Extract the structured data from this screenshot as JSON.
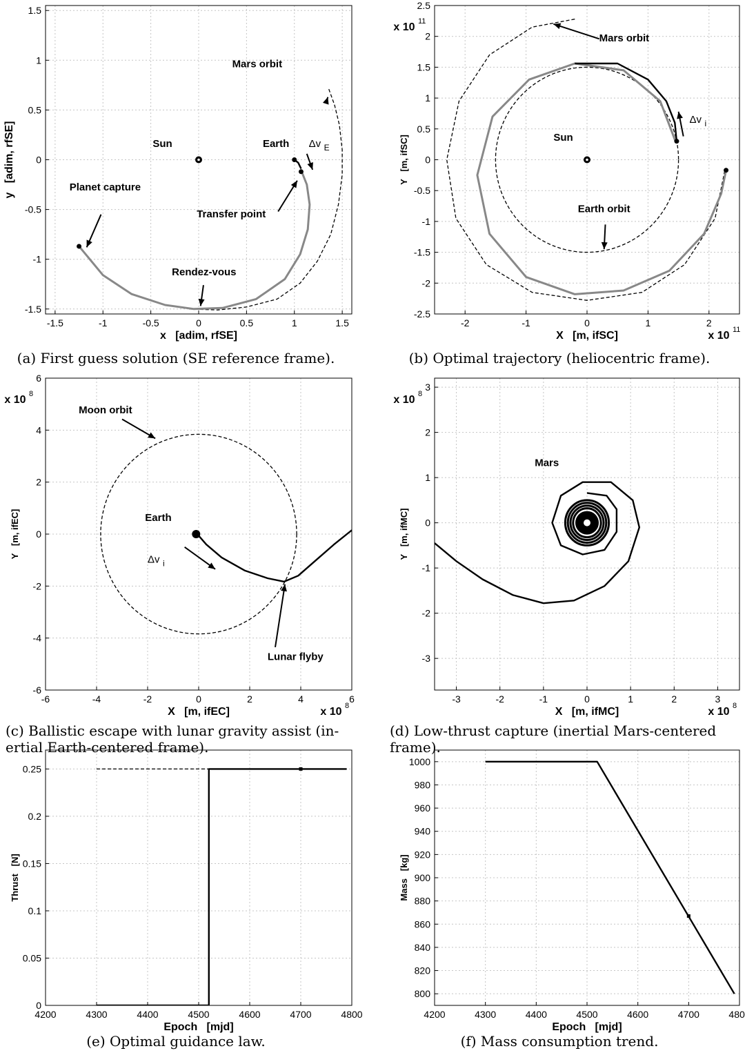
{
  "chart_data": [
    {
      "id": "a",
      "type": "line",
      "caption": "(a) First guess solution (SE reference frame).",
      "xlabel": "x   [adim, rfSE]",
      "ylabel": "y   [adim, rfSE]",
      "xlim": [
        -1.6,
        1.6
      ],
      "ylim": [
        -1.55,
        1.55
      ],
      "xticks": [
        "-1.5",
        "-1",
        "-0.5",
        "0",
        "0.5",
        "1",
        "1.5"
      ],
      "xtick_vals": [
        -1.5,
        -1,
        -0.5,
        0,
        0.5,
        1,
        1.5
      ],
      "yticks": [
        "1.5",
        "1",
        "0.5",
        "0",
        "-0.5",
        "-1",
        "-1.5"
      ],
      "ytick_vals": [
        1.5,
        1,
        0.5,
        0,
        -0.5,
        -1,
        -1.5
      ],
      "grid": true,
      "series": [
        {
          "style": "dashed",
          "color": "#000",
          "points": [
            [
              1.36,
              0.71
            ],
            [
              1.42,
              0.55
            ],
            [
              1.47,
              0.35
            ],
            [
              1.5,
              0.1
            ],
            [
              1.5,
              -0.15
            ],
            [
              1.46,
              -0.45
            ],
            [
              1.38,
              -0.75
            ],
            [
              1.24,
              -1.02
            ],
            [
              1.06,
              -1.24
            ],
            [
              0.82,
              -1.4
            ],
            [
              0.5,
              -1.48
            ],
            [
              0.2,
              -1.51
            ],
            [
              -0.1,
              -1.5
            ]
          ]
        },
        {
          "style": "solid",
          "color": "#888888",
          "points": [
            [
              1.08,
              -0.13
            ],
            [
              1.13,
              -0.25
            ],
            [
              1.16,
              -0.45
            ],
            [
              1.14,
              -0.7
            ],
            [
              1.06,
              -0.95
            ],
            [
              0.9,
              -1.2
            ],
            [
              0.6,
              -1.4
            ],
            [
              0.25,
              -1.49
            ],
            [
              -0.05,
              -1.5
            ],
            [
              -0.35,
              -1.46
            ],
            [
              -0.7,
              -1.35
            ],
            [
              -1.0,
              -1.16
            ],
            [
              -1.25,
              -0.87
            ]
          ]
        },
        {
          "style": "solid",
          "color": "#000",
          "points": [
            [
              1.0,
              0.0
            ],
            [
              1.04,
              -0.03
            ],
            [
              1.07,
              -0.09
            ]
          ]
        }
      ],
      "markers": [
        [
          0,
          0
        ],
        [
          1.0,
          0.0
        ],
        [
          1.07,
          -0.12
        ],
        [
          -1.25,
          -0.87
        ]
      ],
      "labels": [
        {
          "text": "Sun",
          "x": -0.48,
          "y": 0.13
        },
        {
          "text": "Earth",
          "x": 0.67,
          "y": 0.13
        },
        {
          "text": "Mars orbit",
          "x": 0.35,
          "y": 0.93
        },
        {
          "text": "Planet capture",
          "x": -1.35,
          "y": -0.31
        },
        {
          "text": "Transfer point",
          "x": -0.02,
          "y": -0.58
        },
        {
          "text": "Rendez-vous",
          "x": -0.28,
          "y": -1.16
        }
      ],
      "arrows": [
        {
          "from": [
            1.33,
            0.57
          ],
          "to": [
            1.35,
            0.63
          ]
        },
        {
          "from": [
            -1.02,
            -0.55
          ],
          "to": [
            -1.17,
            -0.88
          ]
        },
        {
          "from": [
            0.83,
            -0.52
          ],
          "to": [
            1.03,
            -0.21
          ]
        },
        {
          "from": [
            0.05,
            -1.26
          ],
          "to": [
            0.02,
            -1.47
          ]
        },
        {
          "from": [
            1.13,
            0.06
          ],
          "to": [
            1.19,
            -0.1
          ]
        }
      ],
      "delta_label": {
        "base": "Δv",
        "sub": "E",
        "x": 1.15,
        "y": 0.13
      }
    },
    {
      "id": "b",
      "type": "line",
      "caption": "(b) Optimal trajectory (heliocentric frame).",
      "xlabel": "X   [m, ifSC]",
      "ylabel": "Y   [m, ifSC]",
      "xlim": [
        -2.5,
        2.5
      ],
      "ylim": [
        -2.5,
        2.5
      ],
      "xticks": [
        "-2",
        "-1",
        "0",
        "1",
        "2"
      ],
      "xtick_vals": [
        -2,
        -1,
        0,
        1,
        2
      ],
      "yticks": [
        "2.5",
        "2",
        "1.5",
        "1",
        "0.5",
        "0",
        "-0.5",
        "-1",
        "-1.5",
        "-2",
        "-2.5"
      ],
      "ytick_vals": [
        2.5,
        2,
        1.5,
        1,
        0.5,
        0,
        -0.5,
        -1,
        -1.5,
        -2,
        -2.5
      ],
      "x_exponent": "x 10",
      "x_exp_power": "11",
      "y_exponent": "x 10",
      "y_exp_power": "11",
      "grid": true,
      "series": [
        {
          "style": "dashed",
          "color": "#000",
          "circle": [
            0,
            0,
            1.5
          ]
        },
        {
          "style": "dashed",
          "color": "#000",
          "points": [
            [
              -0.2,
              2.28
            ],
            [
              -0.9,
              2.15
            ],
            [
              -1.6,
              1.7
            ],
            [
              -2.1,
              0.95
            ],
            [
              -2.3,
              0.0
            ],
            [
              -2.15,
              -0.95
            ],
            [
              -1.65,
              -1.7
            ],
            [
              -0.9,
              -2.15
            ],
            [
              0.0,
              -2.28
            ],
            [
              0.9,
              -2.15
            ],
            [
              1.6,
              -1.7
            ],
            [
              2.1,
              -0.95
            ],
            [
              2.26,
              -0.17
            ]
          ]
        },
        {
          "style": "solid",
          "color": "#888888",
          "points": [
            [
              1.45,
              0.3
            ],
            [
              1.2,
              0.95
            ],
            [
              0.6,
              1.45
            ],
            [
              -0.2,
              1.56
            ],
            [
              -0.95,
              1.3
            ],
            [
              -1.55,
              0.7
            ],
            [
              -1.8,
              -0.25
            ],
            [
              -1.6,
              -1.2
            ],
            [
              -1.0,
              -1.9
            ],
            [
              -0.2,
              -2.18
            ],
            [
              0.6,
              -2.12
            ],
            [
              1.35,
              -1.8
            ],
            [
              1.92,
              -1.2
            ],
            [
              2.2,
              -0.55
            ],
            [
              2.28,
              -0.17
            ]
          ]
        },
        {
          "style": "solid",
          "color": "#000",
          "points": [
            [
              -0.2,
              1.56
            ],
            [
              0.5,
              1.56
            ],
            [
              1.0,
              1.3
            ],
            [
              1.3,
              0.95
            ],
            [
              1.44,
              0.6
            ],
            [
              1.47,
              0.3
            ]
          ]
        }
      ],
      "markers": [
        [
          0,
          0
        ],
        [
          1.47,
          0.3
        ],
        [
          2.28,
          -0.17
        ]
      ],
      "labels": [
        {
          "text": "Mars orbit",
          "x": 0.2,
          "y": 1.92
        },
        {
          "text": "Sun",
          "x": -0.55,
          "y": 0.31
        },
        {
          "text": "Earth orbit",
          "x": -0.15,
          "y": -0.85
        }
      ],
      "arrows": [
        {
          "from": [
            0.2,
            1.96
          ],
          "to": [
            -0.55,
            2.2
          ]
        },
        {
          "from": [
            0.3,
            -1.05
          ],
          "to": [
            0.28,
            -1.45
          ]
        },
        {
          "from": [
            1.58,
            0.38
          ],
          "to": [
            1.5,
            0.78
          ]
        }
      ],
      "delta_label": {
        "base": "Δv",
        "sub": "i",
        "x": 1.68,
        "y": 0.6
      }
    },
    {
      "id": "c",
      "type": "line",
      "caption": "(c) Ballistic escape with lunar gravity assist (in-ertial Earth-centered frame).",
      "caption_lines": [
        "(c) Ballistic escape with lunar gravity assist (in-",
        "ertial Earth-centered frame)."
      ],
      "xlabel": "X   [m, ifEC]",
      "ylabel": "Y   [m, ifEC]",
      "xlim": [
        -6,
        6
      ],
      "ylim": [
        -6,
        6
      ],
      "xticks": [
        "-6",
        "-4",
        "-2",
        "0",
        "2",
        "4",
        "6"
      ],
      "xtick_vals": [
        -6,
        -4,
        -2,
        0,
        2,
        4,
        6
      ],
      "yticks": [
        "6",
        "4",
        "2",
        "0",
        "-2",
        "-4",
        "-6"
      ],
      "ytick_vals": [
        6,
        4,
        2,
        0,
        -2,
        -4,
        -6
      ],
      "x_exponent": "x 10",
      "x_exp_power": "8",
      "y_exponent": "x 10",
      "y_exp_power": "8",
      "grid": true,
      "series": [
        {
          "style": "dashed",
          "color": "#000",
          "circle": [
            0,
            0,
            3.84
          ]
        },
        {
          "style": "solid",
          "color": "#000",
          "points": [
            [
              -0.1,
              0.05
            ],
            [
              0.3,
              -0.4
            ],
            [
              0.9,
              -0.9
            ],
            [
              1.8,
              -1.4
            ],
            [
              2.7,
              -1.7
            ],
            [
              3.35,
              -1.83
            ],
            [
              3.9,
              -1.6
            ],
            [
              4.6,
              -1.0
            ],
            [
              5.3,
              -0.4
            ],
            [
              6.0,
              0.15
            ]
          ]
        }
      ],
      "markers": [
        [
          -0.1,
          0.0
        ]
      ],
      "labels": [
        {
          "text": "Moon orbit",
          "x": -4.7,
          "y": 4.65
        },
        {
          "text": "Earth",
          "x": -2.1,
          "y": 0.5
        },
        {
          "text": "Lunar flyby",
          "x": 2.7,
          "y": -4.85
        }
      ],
      "arrows": [
        {
          "from": [
            -3.0,
            4.42
          ],
          "to": [
            -1.7,
            3.68
          ]
        },
        {
          "from": [
            3.0,
            -4.35
          ],
          "to": [
            3.38,
            -1.93
          ]
        },
        {
          "from": [
            -0.55,
            -0.5
          ],
          "to": [
            0.65,
            -1.35
          ]
        }
      ],
      "delta_label": {
        "base": "Δv",
        "sub": "i",
        "x": -2.0,
        "y": -1.1
      }
    },
    {
      "id": "d",
      "type": "line",
      "caption": "(d) Low-thrust capture (inertial Mars-centered frame).",
      "caption_lines": [
        "(d) Low-thrust capture (inertial Mars-centered",
        "frame)."
      ],
      "xlabel": "X   [m, ifMC]",
      "ylabel": "Y   [m, ifMC]",
      "xlim": [
        -3.5,
        3.5
      ],
      "ylim": [
        -3.7,
        3.2
      ],
      "xticks": [
        "-3",
        "-2",
        "-1",
        "0",
        "1",
        "2",
        "3"
      ],
      "xtick_vals": [
        -3,
        -2,
        -1,
        0,
        1,
        2,
        3
      ],
      "yticks": [
        "3",
        "2",
        "1",
        "0",
        "-1",
        "-2",
        "-3"
      ],
      "ytick_vals": [
        3,
        2,
        1,
        0,
        -1,
        -2,
        -3
      ],
      "x_exponent": "x 10",
      "x_exp_power": "8",
      "y_exponent": "x 10",
      "y_exp_power": "8",
      "grid": true,
      "series": [
        {
          "style": "solid",
          "color": "#000",
          "points": [
            [
              -3.5,
              -0.45
            ],
            [
              -3.0,
              -0.85
            ],
            [
              -2.4,
              -1.25
            ],
            [
              -1.7,
              -1.6
            ],
            [
              -1.0,
              -1.78
            ],
            [
              -0.3,
              -1.72
            ],
            [
              0.4,
              -1.4
            ],
            [
              0.95,
              -0.85
            ],
            [
              1.2,
              -0.1
            ],
            [
              1.05,
              0.5
            ],
            [
              0.55,
              0.9
            ],
            [
              -0.1,
              0.9
            ],
            [
              -0.6,
              0.6
            ],
            [
              -0.8,
              0.0
            ],
            [
              -0.6,
              -0.5
            ],
            [
              -0.1,
              -0.7
            ],
            [
              0.4,
              -0.6
            ],
            [
              0.68,
              -0.2
            ],
            [
              0.68,
              0.3
            ],
            [
              0.45,
              0.6
            ],
            [
              0.0,
              0.66
            ]
          ]
        }
      ],
      "spirals": [
        {
          "cx": 0,
          "cy": 0,
          "r": 0.5
        },
        {
          "cx": 0,
          "cy": 0,
          "r": 0.44
        },
        {
          "cx": 0,
          "cy": 0,
          "r": 0.38
        },
        {
          "cx": 0,
          "cy": 0,
          "r": 0.32
        }
      ],
      "markers": [
        [
          0,
          0
        ]
      ],
      "labels": [
        {
          "text": "Mars",
          "x": -1.2,
          "y": 1.25
        }
      ],
      "arrows": []
    },
    {
      "id": "e",
      "type": "line",
      "caption": "(e) Optimal guidance law.",
      "xlabel": "Epoch   [mjd]",
      "ylabel": "Thrust   [N]",
      "xlim": [
        4200,
        4800
      ],
      "ylim": [
        0,
        0.27
      ],
      "xticks": [
        "4200",
        "4300",
        "4400",
        "4500",
        "4600",
        "4700",
        "4800"
      ],
      "xtick_vals": [
        4200,
        4300,
        4400,
        4500,
        4600,
        4700,
        4800
      ],
      "yticks": [
        "0.25",
        "0.2",
        "0.15",
        "0.1",
        "0.05",
        "0"
      ],
      "ytick_vals": [
        0.25,
        0.2,
        0.15,
        0.1,
        0.05,
        0
      ],
      "grid": true,
      "series": [
        {
          "style": "dashed",
          "color": "#000",
          "points": [
            [
              4300,
              0.25
            ],
            [
              4520,
              0.25
            ]
          ]
        },
        {
          "style": "solid",
          "color": "#000",
          "points": [
            [
              4300,
              0.0
            ],
            [
              4520,
              0.0
            ],
            [
              4520,
              0.25
            ],
            [
              4790,
              0.25
            ]
          ]
        }
      ],
      "markers": [
        [
          4700,
          0.25
        ]
      ],
      "labels": [],
      "arrows": []
    },
    {
      "id": "f",
      "type": "line",
      "caption": "(f) Mass consumption trend.",
      "xlabel": "Epoch   [mjd]",
      "ylabel": "Mass   [kg]",
      "xlim": [
        4200,
        4800
      ],
      "ylim": [
        790,
        1010
      ],
      "xticks": [
        "4200",
        "4300",
        "4400",
        "4500",
        "4600",
        "4700",
        "4800"
      ],
      "xtick_vals": [
        4200,
        4300,
        4400,
        4500,
        4600,
        4700,
        4800
      ],
      "yticks": [
        "1000",
        "980",
        "960",
        "940",
        "920",
        "900",
        "880",
        "860",
        "840",
        "820",
        "800"
      ],
      "ytick_vals": [
        1000,
        980,
        960,
        940,
        920,
        900,
        880,
        860,
        840,
        820,
        800
      ],
      "grid": true,
      "series": [
        {
          "style": "solid",
          "color": "#000",
          "points": [
            [
              4300,
              1000
            ],
            [
              4520,
              1000
            ],
            [
              4790,
              800
            ]
          ]
        }
      ],
      "markers": [
        [
          4700,
          867
        ]
      ],
      "labels": [],
      "arrows": []
    }
  ]
}
